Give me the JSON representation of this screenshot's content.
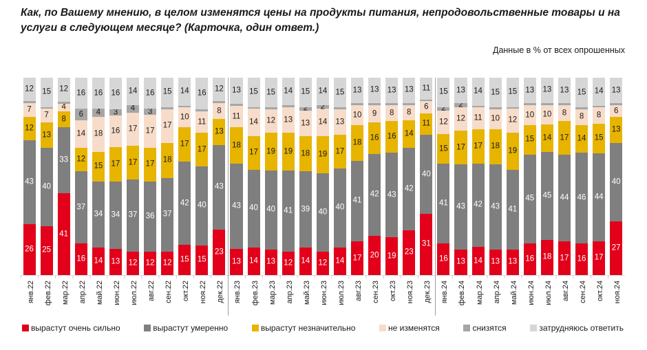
{
  "header": {
    "title": "Как, по Вашему мнению, в целом изменятся цены на продукты питания, непродовольственные товары и на услуги в следующем месяце? (Карточка, один ответ.)",
    "subtitle": "Данные в % от всех опрошенных"
  },
  "chart_data": {
    "type": "bar",
    "stacked": true,
    "percent_stacked": true,
    "grid": false,
    "legend_position": "bottom",
    "value_label_min": 2,
    "categories": [
      "янв.22",
      "фев.22",
      "мар.22",
      "апр.22",
      "май.22",
      "июн.22",
      "июл.22",
      "авг.22",
      "сен.22",
      "окт.22",
      "ноя.22",
      "дек.22",
      "янв.23",
      "фев.23",
      "мар.23",
      "апр.23",
      "май.23",
      "июн.23",
      "июл.23",
      "авг.23",
      "сен.23",
      "окт.23",
      "ноя.23",
      "дек.23",
      "янв.24",
      "фев.24",
      "мар.24",
      "апр.24",
      "май.24",
      "июн.24",
      "июл.24",
      "авг.24",
      "сен.24",
      "окт.24",
      "ноя.24"
    ],
    "series": [
      {
        "name": "вырастут очень сильно",
        "color": "#e2001a",
        "label_color": "#ffffff",
        "values": [
          26,
          25,
          41,
          16,
          14,
          13,
          12,
          12,
          12,
          15,
          15,
          23,
          13,
          14,
          13,
          12,
          14,
          12,
          14,
          17,
          20,
          19,
          23,
          31,
          16,
          13,
          14,
          13,
          13,
          16,
          18,
          17,
          16,
          17,
          27
        ]
      },
      {
        "name": "вырастут умеренно",
        "color": "#7f7f7f",
        "label_color": "#ffffff",
        "values": [
          43,
          40,
          33,
          37,
          34,
          34,
          37,
          36,
          37,
          42,
          40,
          43,
          43,
          40,
          40,
          41,
          39,
          40,
          40,
          41,
          42,
          43,
          42,
          40,
          41,
          43,
          42,
          43,
          41,
          45,
          45,
          44,
          46,
          44,
          40
        ]
      },
      {
        "name": "вырастут незначительно",
        "color": "#e7b400",
        "label_color": "#1a1a1a",
        "values": [
          12,
          13,
          8,
          12,
          15,
          17,
          17,
          17,
          18,
          17,
          17,
          13,
          18,
          17,
          19,
          19,
          18,
          19,
          17,
          18,
          16,
          16,
          14,
          11,
          15,
          17,
          17,
          18,
          19,
          15,
          14,
          17,
          14,
          15,
          13
        ]
      },
      {
        "name": "не изменятся",
        "color": "#f7dcc9",
        "label_color": "#1a1a1a",
        "values": [
          7,
          7,
          4,
          14,
          18,
          16,
          17,
          17,
          17,
          10,
          11,
          8,
          11,
          14,
          12,
          13,
          13,
          14,
          13,
          10,
          9,
          8,
          8,
          6,
          12,
          12,
          11,
          10,
          12,
          10,
          10,
          8,
          8,
          8,
          6
        ]
      },
      {
        "name": "снизятся",
        "color": "#a6a6a6",
        "label_color": "#1a1a1a",
        "values": [
          1,
          1,
          1,
          6,
          4,
          3,
          4,
          3,
          1,
          1,
          1,
          1,
          1,
          1,
          1,
          1,
          2,
          2,
          1,
          1,
          1,
          1,
          1,
          1,
          2,
          2,
          1,
          1,
          1,
          1,
          1,
          1,
          1,
          1,
          1
        ]
      },
      {
        "name": "затрудняюсь ответить",
        "color": "#d6d6d6",
        "label_color": "#1a1a1a",
        "values": [
          12,
          15,
          12,
          16,
          16,
          16,
          14,
          16,
          15,
          14,
          16,
          12,
          13,
          15,
          15,
          14,
          15,
          14,
          15,
          13,
          13,
          13,
          13,
          11,
          15,
          13,
          14,
          15,
          15,
          13,
          13,
          13,
          15,
          14,
          13
        ]
      }
    ],
    "year_separators_after": [
      "дек.22",
      "дек.23"
    ]
  }
}
